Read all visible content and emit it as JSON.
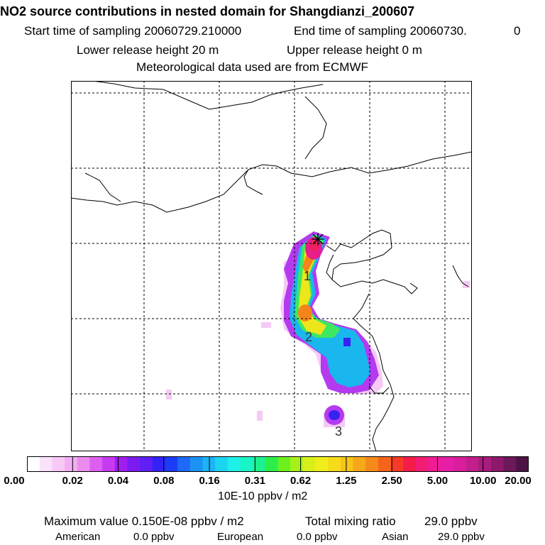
{
  "header": {
    "title": "NO2 source contributions in nested domain for Shangdianzi_200607",
    "start_label": "Start time of sampling 20060729.210000",
    "end_label": "End time of sampling 20060730.",
    "end_suffix": "0",
    "lower_release": "Lower release height   20 m",
    "upper_release": "Upper release height    0 m",
    "met_data": "Meteorological data used are from ECMWF"
  },
  "map": {
    "station_marker": "receptor-star-icon",
    "labels": [
      "1",
      "2",
      "3"
    ]
  },
  "colorbar": {
    "ticks": [
      "0.00",
      "0.02",
      "0.04",
      "0.08",
      "0.16",
      "0.31",
      "0.62",
      "1.25",
      "2.50",
      "5.00",
      "10.00",
      "20.00"
    ],
    "unit": "10E-10 ppbv / m2",
    "colors": [
      "#ffffff",
      "#fbe2fb",
      "#f7c9f7",
      "#f2aef2",
      "#ea8cee",
      "#dd5ff0",
      "#c83af0",
      "#a21df0",
      "#7c1bf0",
      "#5f1ff5",
      "#3322f5",
      "#1d3cf5",
      "#1c6af5",
      "#1d92f5",
      "#1cb4f5",
      "#1cd4f0",
      "#1ef0e8",
      "#18f5c7",
      "#1ef090",
      "#2cee4a",
      "#6cf01e",
      "#a8f01a",
      "#d8f01a",
      "#f0ee1a",
      "#f5dc1a",
      "#f5c41a",
      "#f5a81a",
      "#f58a1a",
      "#f5641a",
      "#f53a28",
      "#f51c4a",
      "#f21c74",
      "#f01c96",
      "#e61ea8",
      "#d81e9c",
      "#c21e8c",
      "#a81c7c",
      "#8c1a6a",
      "#6c185a",
      "#4c1444"
    ]
  },
  "summary": {
    "max_value": "Maximum value  0.150E-08 ppbv / m2",
    "total_label": "Total mixing ratio",
    "total_value": "29.0 ppbv",
    "regions": [
      {
        "name": "American",
        "value": "0.0 ppbv"
      },
      {
        "name": "European",
        "value": "0.0 ppbv"
      },
      {
        "name": "Asian",
        "value": "29.0 ppbv"
      }
    ]
  }
}
